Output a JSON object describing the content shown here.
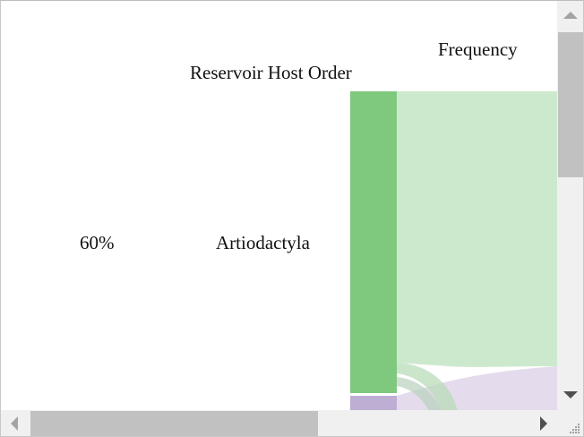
{
  "chart_data": {
    "type": "sankey",
    "columns": [
      {
        "header": "Reservoir Host Order",
        "role": "source"
      },
      {
        "header": "Frequency",
        "role": "target"
      }
    ],
    "nodes": [
      {
        "name": "Artiodactyla",
        "percent_label": "60%",
        "color": "#7fc97f"
      },
      {
        "name": "",
        "color": "#beaed4"
      }
    ],
    "flow_colors": [
      "#cde9cd",
      "#e4dcec"
    ]
  },
  "scrollbars": {
    "vertical_thumb_fraction_start": 0.0,
    "horizontal_thumb_fraction_start": 0.05
  }
}
